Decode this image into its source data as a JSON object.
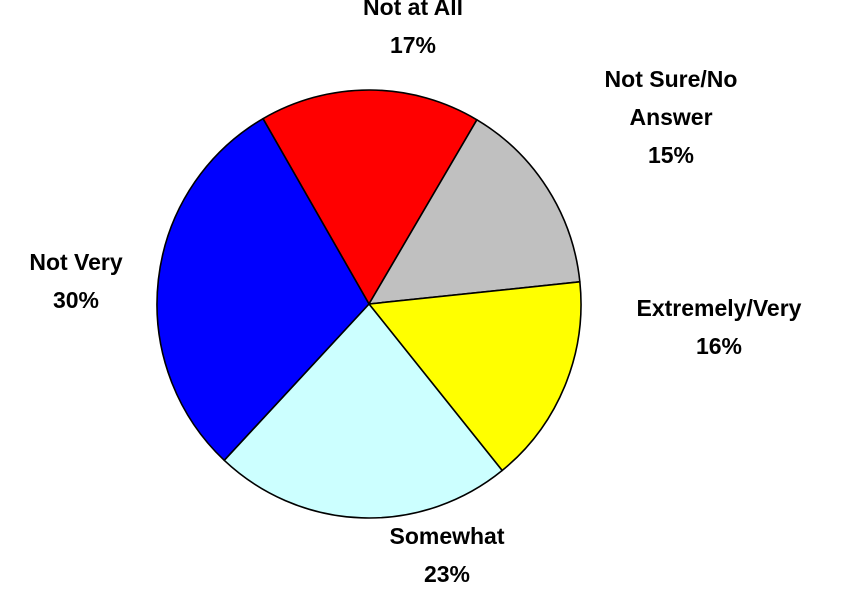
{
  "chart_data": {
    "type": "pie",
    "title": "",
    "slices": [
      {
        "name": "Not at All",
        "value": 17,
        "value_label": "17%",
        "color": "#ff0000"
      },
      {
        "name": "Not Sure/No Answer",
        "value": 15,
        "value_label": "15%",
        "color": "#c0c0c0"
      },
      {
        "name": "Extremely/Very",
        "value": 16,
        "value_label": "16%",
        "color": "#ffff00"
      },
      {
        "name": "Somewhat",
        "value": 23,
        "value_label": "23%",
        "color": "#ccffff"
      },
      {
        "name": "Not Very",
        "value": 30,
        "value_label": "30%",
        "color": "#0000ff"
      }
    ],
    "start_angle_deg": 330,
    "direction": "clockwise",
    "legend": "none"
  }
}
